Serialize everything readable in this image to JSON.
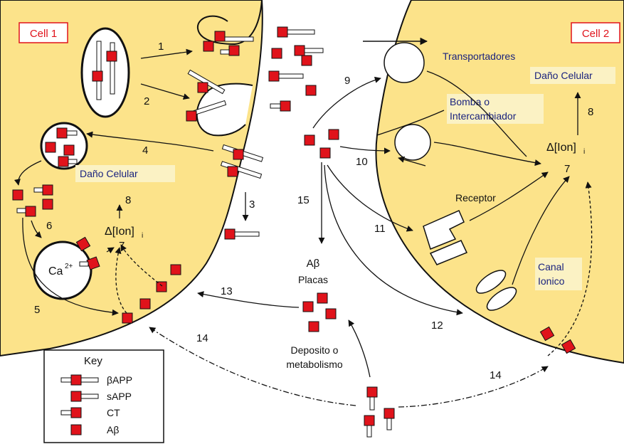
{
  "cells": {
    "cell1": "Cell 1",
    "cell2": "Cell 2"
  },
  "labels": {
    "transportadores": "Transportadores",
    "dano_celular_right": "Daño Celular",
    "bomba_line1": "Bomba o",
    "bomba_line2": "Intercambiador",
    "receptor": "Receptor",
    "canal_line1": "Canal",
    "canal_line2": "Ionico",
    "dano_celular_left": "Daño Celular",
    "ion_left": "Δ[Ion]",
    "ion_left_sub": "i",
    "ion_right": "Δ[Ion]",
    "ion_right_sub": "i",
    "calcium": "Ca",
    "calcium_sup": "2+",
    "abeta": "Aβ",
    "placas": "Placas",
    "deposito_line1": "Deposito o",
    "deposito_line2": "metabolismo"
  },
  "numbers": {
    "n1": "1",
    "n2": "2",
    "n3": "3",
    "n4": "4",
    "n5": "5",
    "n6": "6",
    "n7_left": "7",
    "n7_right": "7",
    "n8_left": "8",
    "n8_right": "8",
    "n9": "9",
    "n10": "10",
    "n11": "11",
    "n12": "12",
    "n13": "13",
    "n14_left": "14",
    "n14_right": "14",
    "n15": "15"
  },
  "key": {
    "title": "Key",
    "items": [
      "βAPP",
      "sAPP",
      "CT",
      "Aβ"
    ]
  },
  "colors": {
    "cell_fill": "#fce38a",
    "marker_red": "#e0131b",
    "label_bg": "#fbf2c4",
    "text_blue": "#1a237e"
  }
}
